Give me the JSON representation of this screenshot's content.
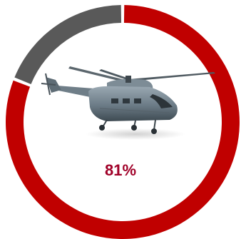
{
  "chart_data": {
    "type": "pie",
    "variant": "donut",
    "slices": [
      {
        "value": 81,
        "color": "#c00000"
      },
      {
        "value": 19,
        "color": "#595959"
      }
    ],
    "center_label": "81%",
    "center_label_color": "#a00028",
    "center_image": "helicopter-image"
  }
}
